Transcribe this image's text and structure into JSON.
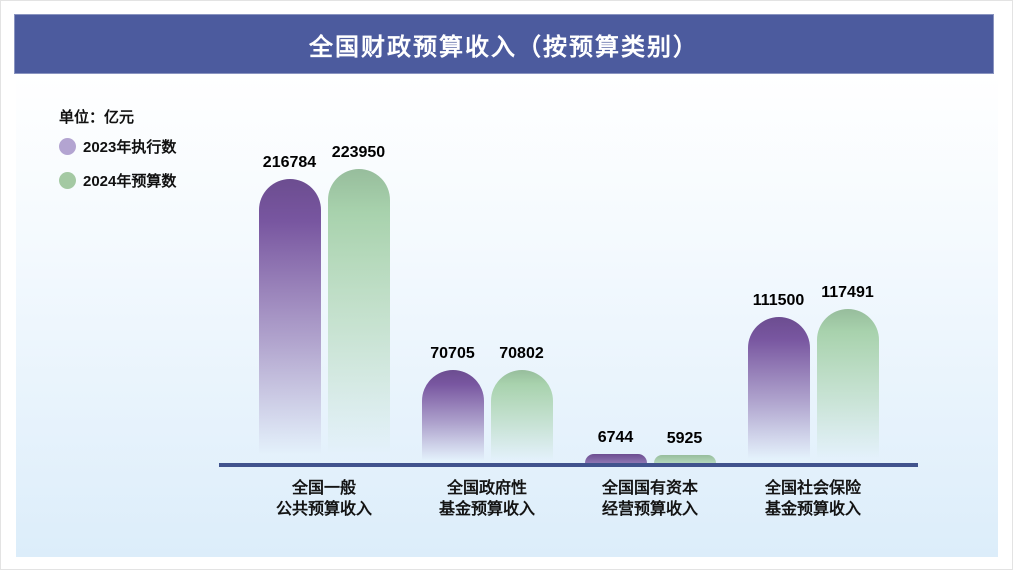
{
  "title": "全国财政预算收入（按预算类别）",
  "unit_label": "单位：亿元",
  "legend": [
    {
      "label": "2023年执行数",
      "color": "#b3a4d1"
    },
    {
      "label": "2024年预算数",
      "color": "#a4c9a3"
    }
  ],
  "colors": {
    "header_bg": "#4c5b9e",
    "card_bg_top": "#ffffff",
    "card_bg_bottom": "#dcedfa",
    "axis": "#41538d",
    "value_text": "#000000",
    "category_text": "#141414"
  },
  "chart_data": {
    "type": "bar",
    "title": "全国财政预算收入（按预算类别）",
    "ylabel": "亿元",
    "ylim": [
      0,
      230000
    ],
    "grid": false,
    "legend_position": "top-left",
    "categories": [
      [
        "全国一般",
        "公共预算收入"
      ],
      [
        "全国政府性",
        "基金预算收入"
      ],
      [
        "全国国有资本",
        "经营预算收入"
      ],
      [
        "全国社会保险",
        "基金预算收入"
      ]
    ],
    "series": [
      {
        "name": "2023年执行数",
        "color": "#7856a0",
        "values": [
          216784,
          70705,
          6744,
          111500
        ]
      },
      {
        "name": "2024年预算数",
        "color": "#a8d2ad",
        "values": [
          223950,
          70802,
          5925,
          117491
        ]
      }
    ]
  }
}
